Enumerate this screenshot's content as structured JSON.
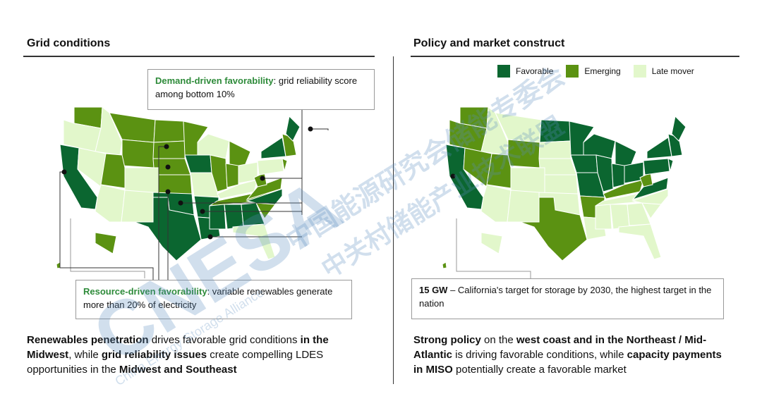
{
  "left": {
    "title": "Grid conditions",
    "demand_box": {
      "label": "Demand-driven favorability",
      "text": ": grid reliability score among bottom 10%"
    },
    "resource_box": {
      "label": "Resource-driven favorability",
      "text": ": variable renewables generate more than 20% of electricity"
    },
    "summary": [
      {
        "t": "Renewables penetration",
        "b": true
      },
      {
        "t": " drives favorable grid conditions ",
        "b": false
      },
      {
        "t": "in the Midwest",
        "b": true
      },
      {
        "t": ", while ",
        "b": false
      },
      {
        "t": "grid reliability issues",
        "b": true
      },
      {
        "t": " create compelling LDES opportunities in the ",
        "b": false
      },
      {
        "t": "Midwest and Southeast",
        "b": true
      }
    ]
  },
  "right": {
    "title": "Policy and market construct",
    "legend": [
      {
        "label": "Favorable",
        "color": "#0b6630"
      },
      {
        "label": "Emerging",
        "color": "#5b9212"
      },
      {
        "label": "Late mover",
        "color": "#e2f7cb"
      }
    ],
    "callout": {
      "label": "15 GW",
      "text": " – California's target for storage by 2030, the highest target in the nation"
    },
    "summary": [
      {
        "t": "Strong policy",
        "b": true
      },
      {
        "t": " on the ",
        "b": false
      },
      {
        "t": "west coast and in the Northeast / Mid-Atlantic",
        "b": true
      },
      {
        "t": " is driving favorable conditions, while ",
        "b": false
      },
      {
        "t": "capacity payments in MISO",
        "b": true
      },
      {
        "t": " potentially create a favorable market",
        "b": false
      }
    ]
  },
  "status_colors": {
    "F": "#0b6630",
    "E": "#5b9212",
    "L": "#e2f7cb"
  },
  "grid_status": {
    "WA": "E",
    "OR": "L",
    "CA": "F",
    "ID": "L",
    "NV": "L",
    "MT": "E",
    "WY": "E",
    "UT": "E",
    "CO": "L",
    "AZ": "L",
    "NM": "L",
    "ND": "E",
    "SD": "E",
    "NE": "E",
    "KS": "E",
    "OK": "F",
    "TX": "F",
    "MN": "E",
    "IA": "F",
    "MO": "L",
    "AR": "F",
    "LA": "F",
    "WI": "L",
    "IL": "E",
    "MI": "E",
    "IN": "E",
    "OH": "L",
    "KY": "L",
    "TN": "E",
    "MS": "F",
    "AL": "F",
    "GA": "F",
    "FL": "L",
    "SC": "E",
    "NC": "F",
    "VA": "E",
    "WV": "E",
    "PA": "L",
    "NY": "F",
    "NJ": "E",
    "NE-states": "E",
    "ME": "F",
    "AK": "E",
    "HI": "E"
  },
  "policy_status": {
    "WA": "E",
    "OR": "E",
    "CA": "F",
    "ID": "L",
    "NV": "E",
    "MT": "L",
    "WY": "E",
    "UT": "E",
    "CO": "L",
    "AZ": "L",
    "NM": "L",
    "ND": "F",
    "SD": "L",
    "NE": "L",
    "KS": "L",
    "OK": "L",
    "TX": "E",
    "MN": "F",
    "IA": "F",
    "MO": "F",
    "AR": "E",
    "LA": "L",
    "WI": "F",
    "IL": "F",
    "MI": "F",
    "IN": "F",
    "OH": "F",
    "KY": "E",
    "TN": "L",
    "MS": "L",
    "AL": "L",
    "GA": "L",
    "FL": "L",
    "SC": "L",
    "NC": "L",
    "VA": "F",
    "WV": "E",
    "PA": "F",
    "NY": "F",
    "NJ": "F",
    "NE-states": "F",
    "ME": "F",
    "AK": "L",
    "HI": "E"
  },
  "watermark": {
    "cn1": "中国能源研究会储能专委会",
    "cn2": "中关村储能产业技术联盟",
    "logo": "CNESA",
    "en": "China Energy Storage Alliance"
  }
}
